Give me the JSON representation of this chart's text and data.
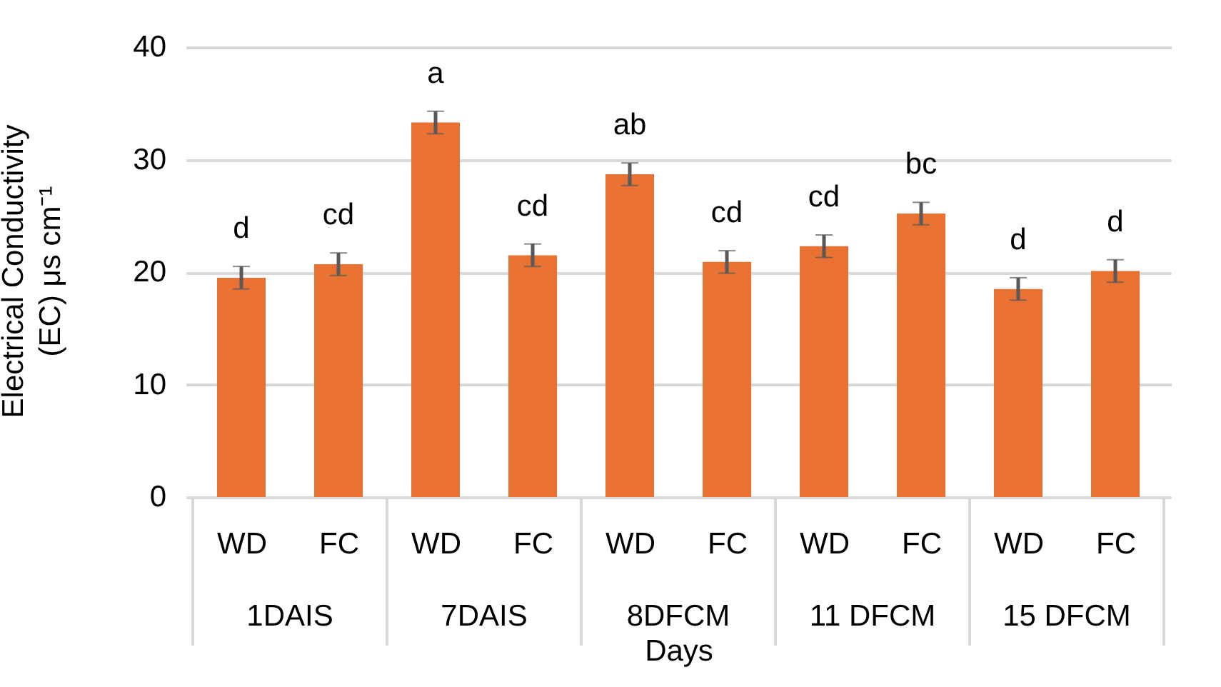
{
  "chart_data": {
    "type": "bar",
    "xlabel": "Days",
    "ylabel": "Electrical Conductivity (EC) μs cm⁻¹",
    "categories": [
      "WD",
      "FC",
      "WD",
      "FC",
      "WD",
      "FC",
      "WD",
      "FC",
      "WD",
      "FC"
    ],
    "annotations": [
      "1DAIS",
      "7DAIS",
      "8DFCM",
      "11 DFCM",
      "15 DFCM"
    ],
    "values": [
      19.5,
      20.7,
      33.3,
      21.5,
      28.7,
      20.9,
      22.3,
      25.2,
      18.5,
      20.1
    ],
    "errors": [
      1.0,
      1.0,
      1.0,
      1.0,
      1.0,
      1.0,
      1.0,
      1.0,
      1.0,
      1.0
    ],
    "value_labels": [
      "d",
      "cd",
      "a",
      "cd",
      "ab",
      "cd",
      "cd",
      "bc",
      "d",
      "d"
    ],
    "color": "#e97132",
    "ylim": [
      0,
      40
    ],
    "yticks": [
      0,
      10,
      20,
      30,
      40
    ],
    "grid": "y"
  }
}
